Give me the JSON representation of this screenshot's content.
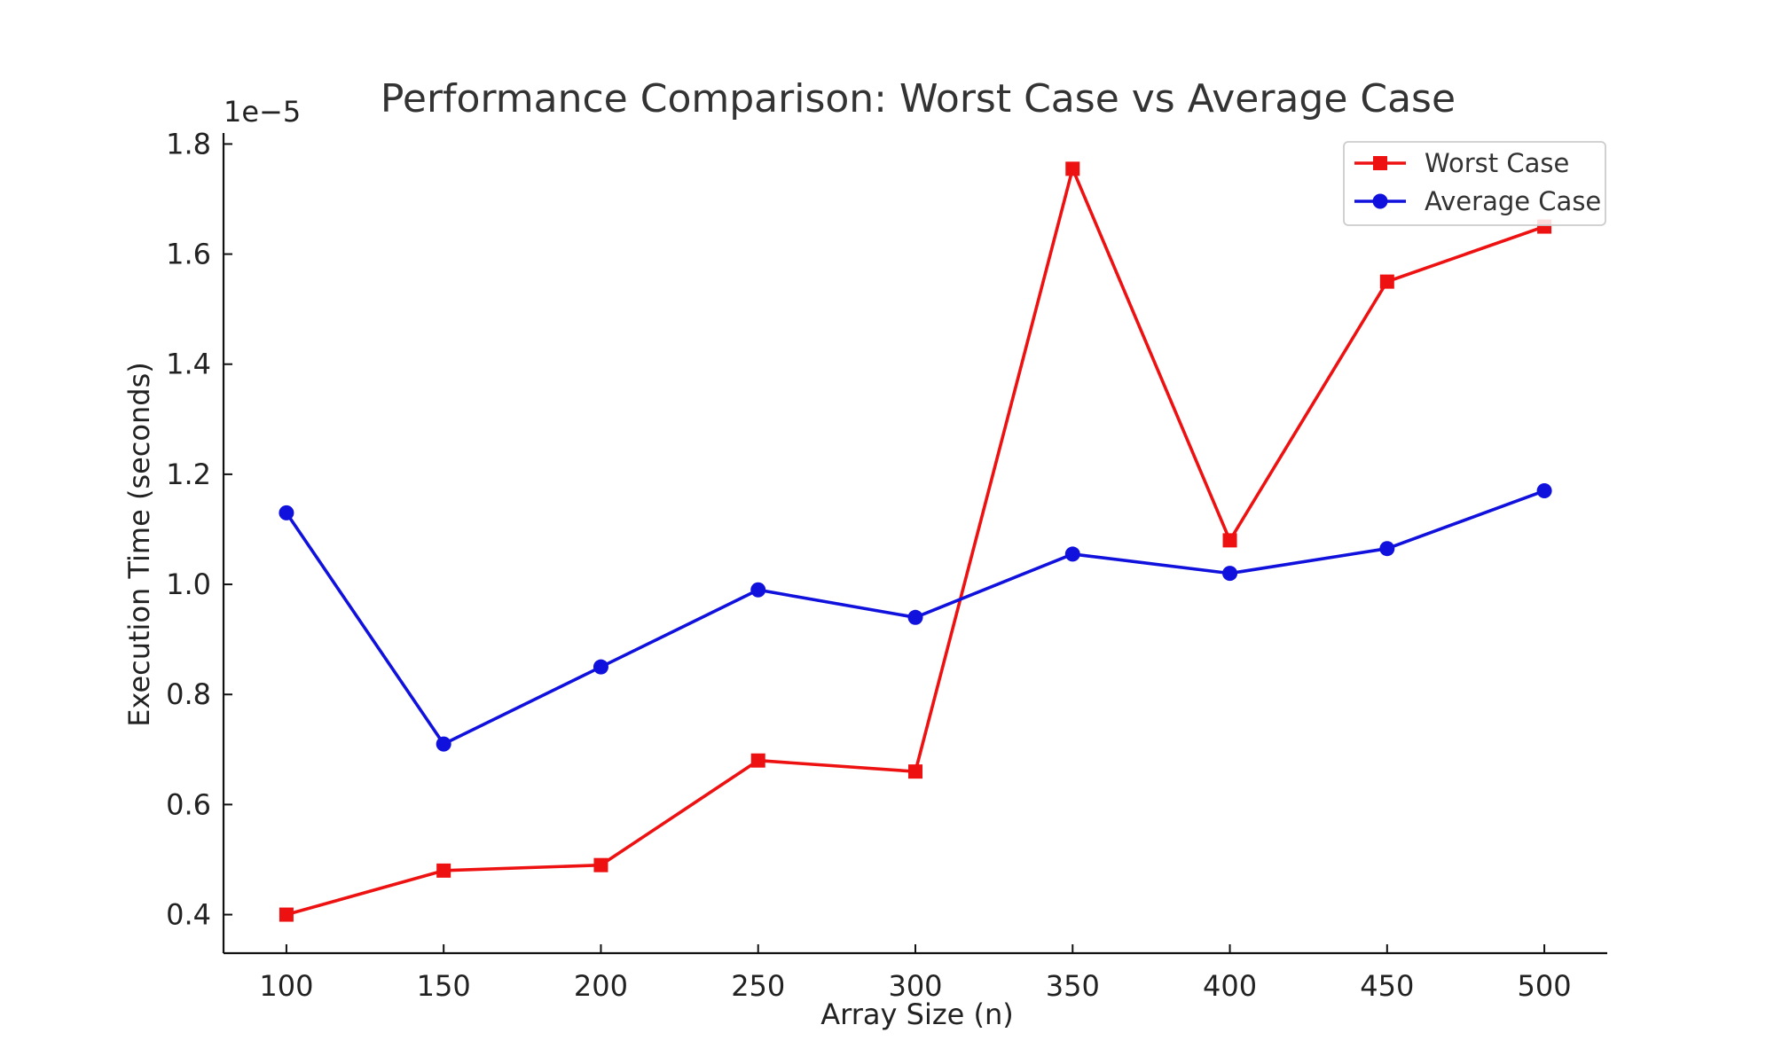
{
  "chart_data": {
    "type": "line",
    "title": "Performance Comparison: Worst Case vs Average Case",
    "xlabel": "Array Size (n)",
    "ylabel": "Execution Time (seconds)",
    "y_offset_label": "1e−5",
    "x": [
      100,
      150,
      200,
      250,
      300,
      350,
      400,
      450,
      500
    ],
    "x_ticks": [
      "100",
      "150",
      "200",
      "250",
      "300",
      "350",
      "400",
      "450",
      "500"
    ],
    "y_ticks": [
      "0.4",
      "0.6",
      "0.8",
      "1.0",
      "1.2",
      "1.4",
      "1.6",
      "1.8"
    ],
    "y_tick_values": [
      0.4,
      0.6,
      0.8,
      1.0,
      1.2,
      1.4,
      1.6,
      1.8
    ],
    "xlim": [
      80,
      520
    ],
    "ylim": [
      0.33,
      1.82
    ],
    "grid": false,
    "legend_position": "top-right",
    "series": [
      {
        "name": "Worst Case",
        "color": "#ee1111",
        "marker": "square",
        "values": [
          0.4,
          0.48,
          0.49,
          0.68,
          0.66,
          1.755,
          1.08,
          1.55,
          1.65
        ]
      },
      {
        "name": "Average Case",
        "color": "#1111dd",
        "marker": "circle",
        "values": [
          1.13,
          0.71,
          0.85,
          0.99,
          0.94,
          1.055,
          1.02,
          1.065,
          1.17
        ]
      }
    ]
  }
}
